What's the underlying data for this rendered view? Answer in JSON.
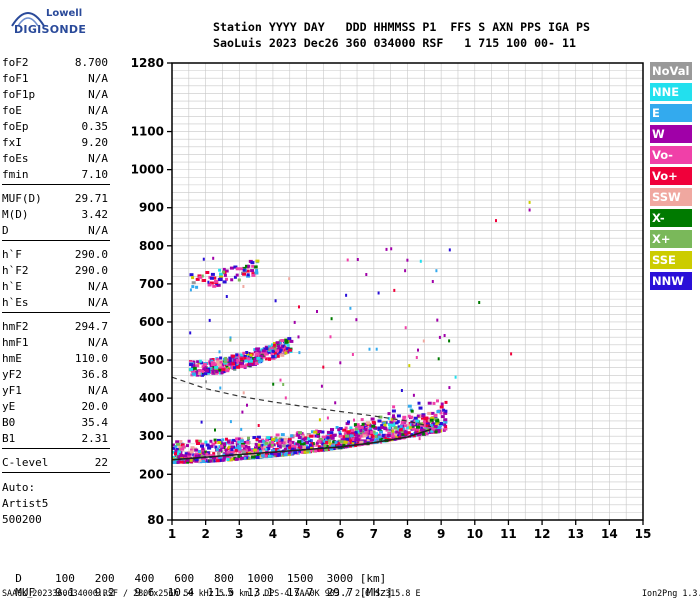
{
  "logo": {
    "line1": "Lowell",
    "line2": "DIGISONDE"
  },
  "header": {
    "row1": "Station YYYY DAY   DDD HHMMSS P1  FFS S AXN PPS IGA PS",
    "row2": "SaoLuis 2023 Dec26 360 034000 RSF   1 715 100 00- 11"
  },
  "params": [
    {
      "name": "foF2",
      "value": "8.700"
    },
    {
      "name": "foF1",
      "value": "N/A"
    },
    {
      "name": "foF1p",
      "value": "N/A"
    },
    {
      "name": "foE",
      "value": "N/A"
    },
    {
      "name": "foEp",
      "value": "0.35"
    },
    {
      "name": "fxI",
      "value": "9.20"
    },
    {
      "name": "foEs",
      "value": "N/A"
    },
    {
      "name": "fmin",
      "value": "7.10"
    },
    {
      "name": "MUF(D)",
      "value": "29.71"
    },
    {
      "name": "M(D)",
      "value": "3.42"
    },
    {
      "name": "D",
      "value": "N/A"
    },
    {
      "name": "h`F",
      "value": "290.0"
    },
    {
      "name": "h`F2",
      "value": "290.0"
    },
    {
      "name": "h`E",
      "value": "N/A"
    },
    {
      "name": "h`Es",
      "value": "N/A"
    },
    {
      "name": "hmF2",
      "value": "294.7"
    },
    {
      "name": "hmF1",
      "value": "N/A"
    },
    {
      "name": "hmE",
      "value": "110.0"
    },
    {
      "name": "yF2",
      "value": "36.8"
    },
    {
      "name": "yF1",
      "value": "N/A"
    },
    {
      "name": "yE",
      "value": "20.0"
    },
    {
      "name": "B0",
      "value": "35.4"
    },
    {
      "name": "B1",
      "value": "2.31"
    },
    {
      "name": "C-level",
      "value": "22"
    }
  ],
  "scaler": {
    "auto": "Auto:",
    "name": "Artist5",
    "version": "500200"
  },
  "legend": [
    {
      "label": "NoVal",
      "color": "#999999"
    },
    {
      "label": "NNE",
      "color": "#22e0ee"
    },
    {
      "label": "E",
      "color": "#33aaee"
    },
    {
      "label": "W",
      "color": "#a000a8"
    },
    {
      "label": "Vo-",
      "color": "#f040a8"
    },
    {
      "label": "Vo+",
      "color": "#f0003a"
    },
    {
      "label": "SSW",
      "color": "#f0a8a0"
    },
    {
      "label": "X-",
      "color": "#007a00"
    },
    {
      "label": "X+",
      "color": "#7ab85a"
    },
    {
      "label": "SSE",
      "color": "#cccc00"
    },
    {
      "label": "NNW",
      "color": "#2a10d8"
    }
  ],
  "muf_table": {
    "d_label": "D",
    "d_values": [
      "100",
      "200",
      "400",
      "600",
      "800",
      "1000",
      "1500",
      "3000"
    ],
    "d_unit": "[km]",
    "muf_label": "MUF",
    "muf_values": [
      "9.1",
      "9.2",
      "9.6",
      "10.4",
      "11.5",
      "13.1",
      "17.7",
      "29.7"
    ],
    "muf_unit": "[MHz]"
  },
  "footer": {
    "left": "SAA0K_2023360034000.RSF / 280fx256h 50 kHz 5.0 km / DPS-4 SAA0K 903 / 2.6 S 315.8 E",
    "right": "Ion2Png 1.3.17"
  },
  "chart_data": {
    "type": "scatter",
    "title": "",
    "xlabel": "",
    "ylabel": "",
    "xlim": [
      1,
      15
    ],
    "ylim": [
      80,
      1280
    ],
    "x_ticks": [
      1,
      2,
      3,
      4,
      5,
      6,
      7,
      8,
      9,
      10,
      11,
      12,
      13,
      14,
      15
    ],
    "y_ticks": [
      80,
      200,
      300,
      400,
      500,
      600,
      700,
      800,
      900,
      1000,
      1100,
      1280
    ],
    "grid": true,
    "traces": [
      {
        "name": "F-trace",
        "from_freq": 1.0,
        "to_freq": 9.1,
        "from_height": 235,
        "to_height": 320
      },
      {
        "name": "second-hop",
        "from_freq": 1.5,
        "to_freq": 4.5,
        "from_height": 470,
        "to_height": 535
      },
      {
        "name": "third-hop",
        "from_freq": 1.5,
        "to_freq": 3.5,
        "from_height": 700,
        "to_height": 740
      }
    ],
    "profile_curve": [
      {
        "x": 1.0,
        "y": 455
      },
      {
        "x": 2.0,
        "y": 425
      },
      {
        "x": 3.0,
        "y": 405
      },
      {
        "x": 4.0,
        "y": 390
      },
      {
        "x": 5.0,
        "y": 377
      },
      {
        "x": 6.0,
        "y": 365
      },
      {
        "x": 7.0,
        "y": 353
      },
      {
        "x": 8.0,
        "y": 340
      },
      {
        "x": 8.7,
        "y": 325
      }
    ],
    "trace_curve": [
      {
        "x": 1.0,
        "y": 238
      },
      {
        "x": 2.0,
        "y": 245
      },
      {
        "x": 3.0,
        "y": 252
      },
      {
        "x": 4.0,
        "y": 258
      },
      {
        "x": 5.0,
        "y": 265
      },
      {
        "x": 6.0,
        "y": 272
      },
      {
        "x": 7.0,
        "y": 283
      },
      {
        "x": 8.0,
        "y": 298
      },
      {
        "x": 8.7,
        "y": 318
      }
    ]
  }
}
